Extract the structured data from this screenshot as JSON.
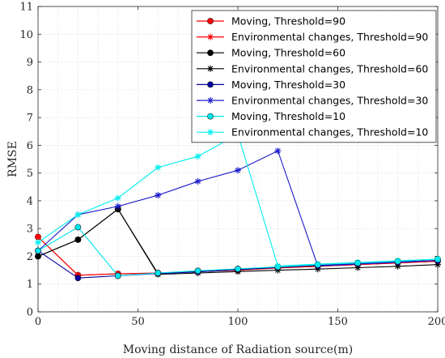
{
  "chart_data": {
    "type": "line",
    "xlabel": "Moving distance of Radiation source(m)",
    "ylabel": "RMSE",
    "xlim": [
      0,
      200
    ],
    "ylim": [
      0,
      11
    ],
    "xticks": [
      "0",
      "50",
      "100",
      "150",
      "200"
    ],
    "yticks": [
      "0",
      "1",
      "2",
      "3",
      "4",
      "5",
      "6",
      "7",
      "8",
      "9",
      "10",
      "11"
    ],
    "grid": true,
    "legend_position": "top-right",
    "series": [
      {
        "name": "Moving, Threshold=90",
        "color": "#ff0000",
        "marker": "dot",
        "x": [
          0,
          20,
          40,
          60,
          80,
          100,
          120,
          140,
          160,
          180,
          200
        ],
        "values": [
          2.7,
          1.32,
          1.37,
          1.4,
          1.45,
          1.5,
          1.58,
          1.64,
          1.7,
          1.76,
          1.82
        ]
      },
      {
        "name": "Environmental changes, Threshold=90",
        "color": "#ff0000",
        "marker": "star",
        "x": [
          0,
          20,
          40,
          60,
          80,
          100,
          120,
          140,
          160,
          180,
          200
        ],
        "values": [
          2.7,
          1.32,
          1.37,
          1.4,
          1.45,
          1.5,
          1.58,
          1.64,
          1.7,
          1.76,
          1.82
        ]
      },
      {
        "name": "Moving, Threshold=60",
        "color": "#000000",
        "marker": "dot",
        "x": [
          0,
          20,
          40,
          60,
          80,
          100,
          120,
          140,
          160,
          180,
          200
        ],
        "values": [
          2.0,
          2.6,
          3.7,
          1.38,
          1.45,
          1.52,
          1.6,
          1.67,
          1.73,
          1.8,
          1.85
        ]
      },
      {
        "name": "Environmental changes, Threshold=60",
        "color": "#000000",
        "marker": "star",
        "x": [
          0,
          20,
          40,
          60,
          80,
          100,
          120,
          140,
          160,
          180,
          200
        ],
        "values": [
          2.0,
          2.6,
          3.7,
          1.35,
          1.4,
          1.45,
          1.5,
          1.54,
          1.59,
          1.64,
          1.7
        ]
      },
      {
        "name": "Moving, Threshold=30",
        "color": "#0000a0",
        "marker": "dot",
        "x": [
          0,
          20,
          40,
          60,
          80,
          100,
          120,
          140,
          160,
          180,
          200
        ],
        "values": [
          2.2,
          1.22,
          1.3,
          1.38,
          1.44,
          1.52,
          1.6,
          1.68,
          1.74,
          1.8,
          1.85
        ]
      },
      {
        "name": "Environmental changes, Threshold=30",
        "color": "#1a1acc",
        "marker": "star",
        "x": [
          0,
          20,
          40,
          60,
          80,
          100,
          120,
          140,
          160,
          180,
          200
        ],
        "values": [
          2.2,
          3.5,
          3.8,
          4.2,
          4.7,
          5.1,
          5.8,
          1.65,
          1.72,
          1.78,
          1.85
        ]
      },
      {
        "name": "Moving, Threshold=10",
        "color": "#00e5ee",
        "marker": "dot",
        "x": [
          0,
          20,
          40,
          60,
          80,
          100,
          120,
          140,
          160,
          180,
          200
        ],
        "values": [
          2.2,
          3.05,
          1.3,
          1.4,
          1.48,
          1.55,
          1.62,
          1.7,
          1.76,
          1.82,
          1.9
        ]
      },
      {
        "name": "Environmental changes, Threshold=10",
        "color": "#00eeee",
        "marker": "star",
        "x": [
          0,
          20,
          40,
          60,
          80,
          100,
          120,
          140,
          160,
          180,
          200
        ],
        "values": [
          2.5,
          3.5,
          4.1,
          5.2,
          5.6,
          6.4,
          1.65,
          1.72,
          1.78,
          1.84,
          1.9
        ]
      }
    ]
  }
}
